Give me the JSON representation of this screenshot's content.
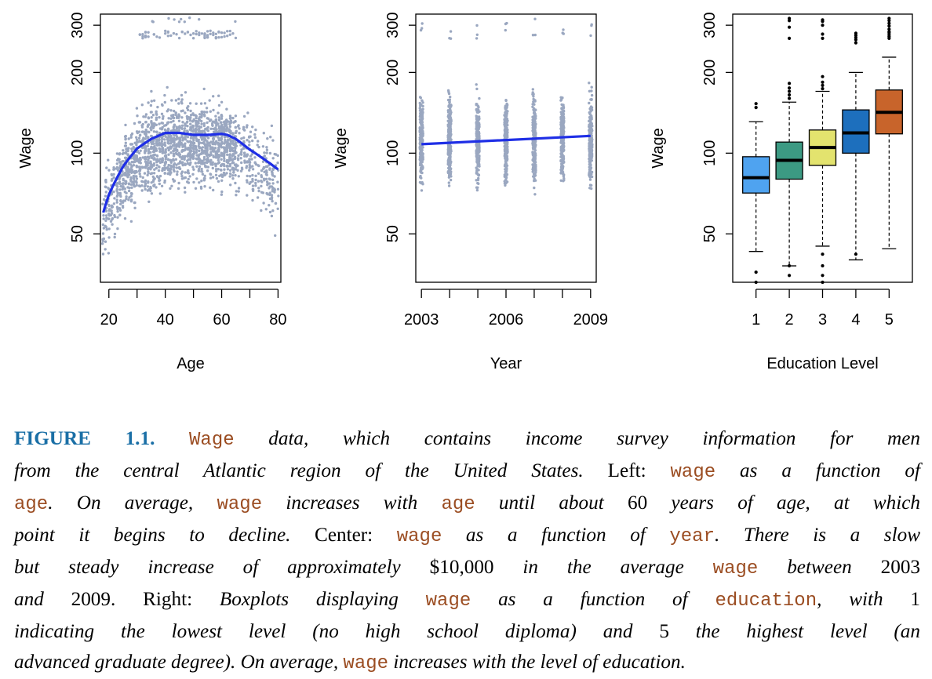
{
  "colors": {
    "points": "#9aa7c0",
    "smooth_line": "#1f2fe6",
    "box_fills": [
      "#4fa3f0",
      "#3c9a83",
      "#e3e36e",
      "#1d6fbd",
      "#c8642b"
    ],
    "caption_figure": "#1a6fa6",
    "caption_code": "#9b4d22"
  },
  "chart_data": [
    {
      "type": "scatter",
      "xlabel": "Age",
      "ylabel": "Wage",
      "xlim": [
        17,
        81
      ],
      "ylim": [
        33,
        330
      ],
      "xticks": [
        20,
        40,
        60,
        80
      ],
      "xtick_labels": [
        "20",
        "40",
        "60",
        "80"
      ],
      "yticks": [
        50,
        100,
        200,
        300
      ],
      "ytick_labels": [
        "50",
        "100",
        "200",
        "300"
      ],
      "smooth_curve": {
        "x": [
          18,
          20,
          25,
          30,
          35,
          40,
          45,
          50,
          55,
          60,
          62,
          65,
          70,
          75,
          80
        ],
        "y": [
          60,
          70,
          89,
          104,
          113,
          119,
          119,
          117,
          117,
          118,
          117,
          113,
          103,
          95,
          87
        ]
      },
      "point_cloud": {
        "x_range": [
          18,
          80
        ],
        "bulk_y_range": [
          40,
          200
        ],
        "outlier_y_range": [
          265,
          320
        ],
        "outlier_x_range": [
          25,
          65
        ]
      }
    },
    {
      "type": "scatter",
      "xlabel": "Year",
      "ylabel": "Wage",
      "xlim": [
        2002.8,
        2009.2
      ],
      "ylim": [
        33,
        330
      ],
      "xticks": [
        2003,
        2004,
        2005,
        2006,
        2007,
        2008,
        2009
      ],
      "xtick_labels": [
        "2003",
        "",
        "",
        "2006",
        "",
        "",
        "2009"
      ],
      "yticks": [
        50,
        100,
        200,
        300
      ],
      "ytick_labels": [
        "50",
        "100",
        "200",
        "300"
      ],
      "regression_line": {
        "x": [
          2003,
          2009
        ],
        "y": [
          108,
          116
        ]
      },
      "point_columns": {
        "x": [
          2003,
          2004,
          2005,
          2006,
          2007,
          2008,
          2009
        ],
        "bulk_y_range": [
          38,
          200
        ]
      }
    },
    {
      "type": "box",
      "xlabel": "Education Level",
      "ylabel": "Wage",
      "ylim": [
        33,
        330
      ],
      "categories": [
        "1",
        "2",
        "3",
        "4",
        "5"
      ],
      "yticks": [
        50,
        100,
        200,
        300
      ],
      "ytick_labels": [
        "50",
        "100",
        "200",
        "300"
      ],
      "boxes": [
        {
          "label": "1",
          "whisker_low": 43,
          "q1": 71,
          "median": 81,
          "q3": 97,
          "whisker_high": 131,
          "outliers": [
            153,
            148,
            36,
            33
          ]
        },
        {
          "label": "2",
          "whisker_low": 38,
          "q1": 80,
          "median": 94,
          "q3": 110,
          "whisker_high": 155,
          "outliers": [
            160,
            165,
            170,
            175,
            182,
            268,
            295,
            312,
            318,
            38,
            35
          ]
        },
        {
          "label": "3",
          "whisker_low": 45,
          "q1": 90,
          "median": 105,
          "q3": 122,
          "whisker_high": 170,
          "outliers": [
            174,
            179,
            184,
            193,
            268,
            278,
            300,
            310,
            314,
            42,
            38,
            35,
            33
          ]
        },
        {
          "label": "4",
          "whisker_low": 40,
          "q1": 100,
          "median": 119,
          "q3": 145,
          "whisker_high": 200,
          "outliers": [
            258,
            265,
            270,
            275,
            280,
            42
          ]
        },
        {
          "label": "5",
          "whisker_low": 44,
          "q1": 118,
          "median": 142,
          "q3": 172,
          "whisker_high": 228,
          "outliers": [
            268,
            272,
            276,
            281,
            284,
            290,
            298,
            305,
            312,
            318
          ]
        }
      ]
    }
  ],
  "caption": {
    "lines": [
      [
        [
          "fig",
          "FIGURE 1.1."
        ],
        [
          "t",
          " "
        ],
        [
          "code",
          "Wage"
        ],
        [
          "it",
          " data, which contains income survey information for men"
        ]
      ],
      [
        [
          "it",
          "from the central Atlantic region of the United States."
        ],
        [
          "rm",
          " Left: "
        ],
        [
          "code",
          "wage"
        ],
        [
          "it",
          " as a function of"
        ]
      ],
      [
        [
          "code",
          "age"
        ],
        [
          "it",
          ". On average, "
        ],
        [
          "code",
          "wage"
        ],
        [
          "it",
          " increases with "
        ],
        [
          "code",
          "age"
        ],
        [
          "it",
          " until about "
        ],
        [
          "rm",
          "60"
        ],
        [
          "it",
          " years of age, at which"
        ]
      ],
      [
        [
          "it",
          "point it begins to decline."
        ],
        [
          "rm",
          " Center: "
        ],
        [
          "code",
          "wage"
        ],
        [
          "it",
          " as a function of "
        ],
        [
          "code",
          "year"
        ],
        [
          "it",
          ". There is a slow"
        ]
      ],
      [
        [
          "it",
          "but steady increase of approximately "
        ],
        [
          "rm",
          "$10,000"
        ],
        [
          "it",
          " in the average "
        ],
        [
          "code",
          "wage"
        ],
        [
          "it",
          " between "
        ],
        [
          "rm",
          "2003"
        ]
      ],
      [
        [
          "it",
          "and "
        ],
        [
          "rm",
          "2009. Right: "
        ],
        [
          "it",
          "Boxplots displaying "
        ],
        [
          "code",
          "wage"
        ],
        [
          "it",
          " as a function of "
        ],
        [
          "code",
          "education"
        ],
        [
          "it",
          ", with "
        ],
        [
          "rm",
          "1"
        ]
      ],
      [
        [
          "it",
          "indicating the lowest level (no high school diploma) and "
        ],
        [
          "rm",
          "5"
        ],
        [
          "it",
          " the highest level (an"
        ]
      ],
      [
        [
          "it",
          "advanced graduate degree). On average, "
        ],
        [
          "code",
          "wage"
        ],
        [
          "it",
          " increases with the level of education."
        ]
      ]
    ]
  }
}
